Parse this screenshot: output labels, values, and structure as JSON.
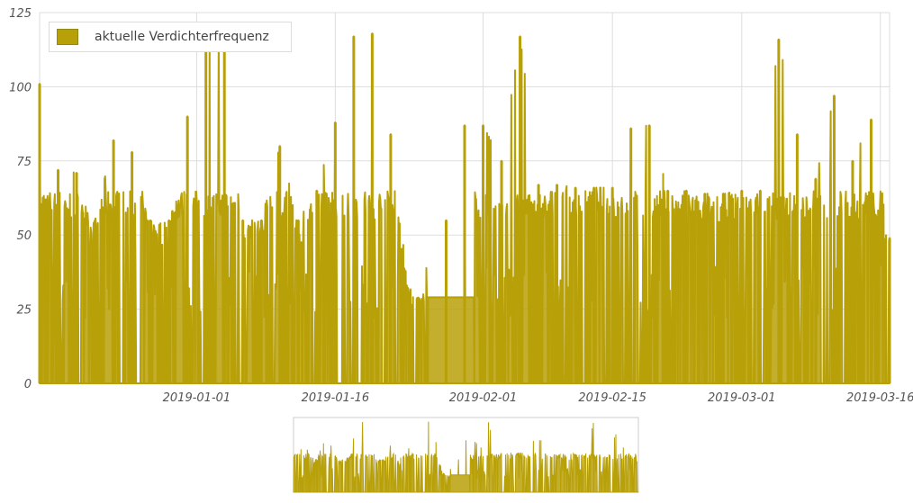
{
  "chart_data": {
    "type": "area",
    "title": "",
    "xlabel": "",
    "ylabel": "",
    "ylim": [
      0,
      125
    ],
    "xlim": [
      "2018-12-15",
      "2019-03-17"
    ],
    "grid": true,
    "legend_position": "top-left",
    "y_ticks": [
      0,
      25,
      50,
      75,
      100,
      125
    ],
    "x_ticks": [
      "2019-01-01",
      "2019-01-16",
      "2019-02-01",
      "2019-02-15",
      "2019-03-01",
      "2019-03-16"
    ],
    "series": [
      {
        "name": "aktuelle Verdichterfrequenz",
        "color": "#b8a008",
        "x": [
          "2018-12-15",
          "2018-12-17",
          "2018-12-19",
          "2018-12-21",
          "2018-12-23",
          "2018-12-25",
          "2018-12-27",
          "2018-12-29",
          "2018-12-31",
          "2019-01-02",
          "2019-01-04",
          "2019-01-06",
          "2019-01-08",
          "2019-01-10",
          "2019-01-12",
          "2019-01-14",
          "2019-01-16",
          "2019-01-18",
          "2019-01-20",
          "2019-01-22",
          "2019-01-24",
          "2019-01-26",
          "2019-01-28",
          "2019-01-30",
          "2019-02-01",
          "2019-02-03",
          "2019-02-05",
          "2019-02-07",
          "2019-02-09",
          "2019-02-11",
          "2019-02-13",
          "2019-02-15",
          "2019-02-17",
          "2019-02-19",
          "2019-02-21",
          "2019-02-23",
          "2019-02-25",
          "2019-02-27",
          "2019-03-01",
          "2019-03-03",
          "2019-03-05",
          "2019-03-07",
          "2019-03-09",
          "2019-03-11",
          "2019-03-13",
          "2019-03-15",
          "2019-03-17"
        ],
        "values": [
          101,
          72,
          71,
          55,
          82,
          78,
          55,
          55,
          90,
          118,
          115,
          55,
          55,
          80,
          55,
          65,
          88,
          117,
          118,
          84,
          30,
          29,
          55,
          87,
          87,
          75,
          117,
          67,
          67,
          66,
          66,
          66,
          86,
          87,
          65,
          65,
          64,
          64,
          65,
          65,
          116,
          84,
          69,
          97,
          75,
          89,
          49
        ]
      }
    ]
  },
  "legend": {
    "label": "aktuelle Verdichterfrequenz",
    "color": "#b8a008"
  },
  "navigator": {
    "color": "#b8a008"
  }
}
